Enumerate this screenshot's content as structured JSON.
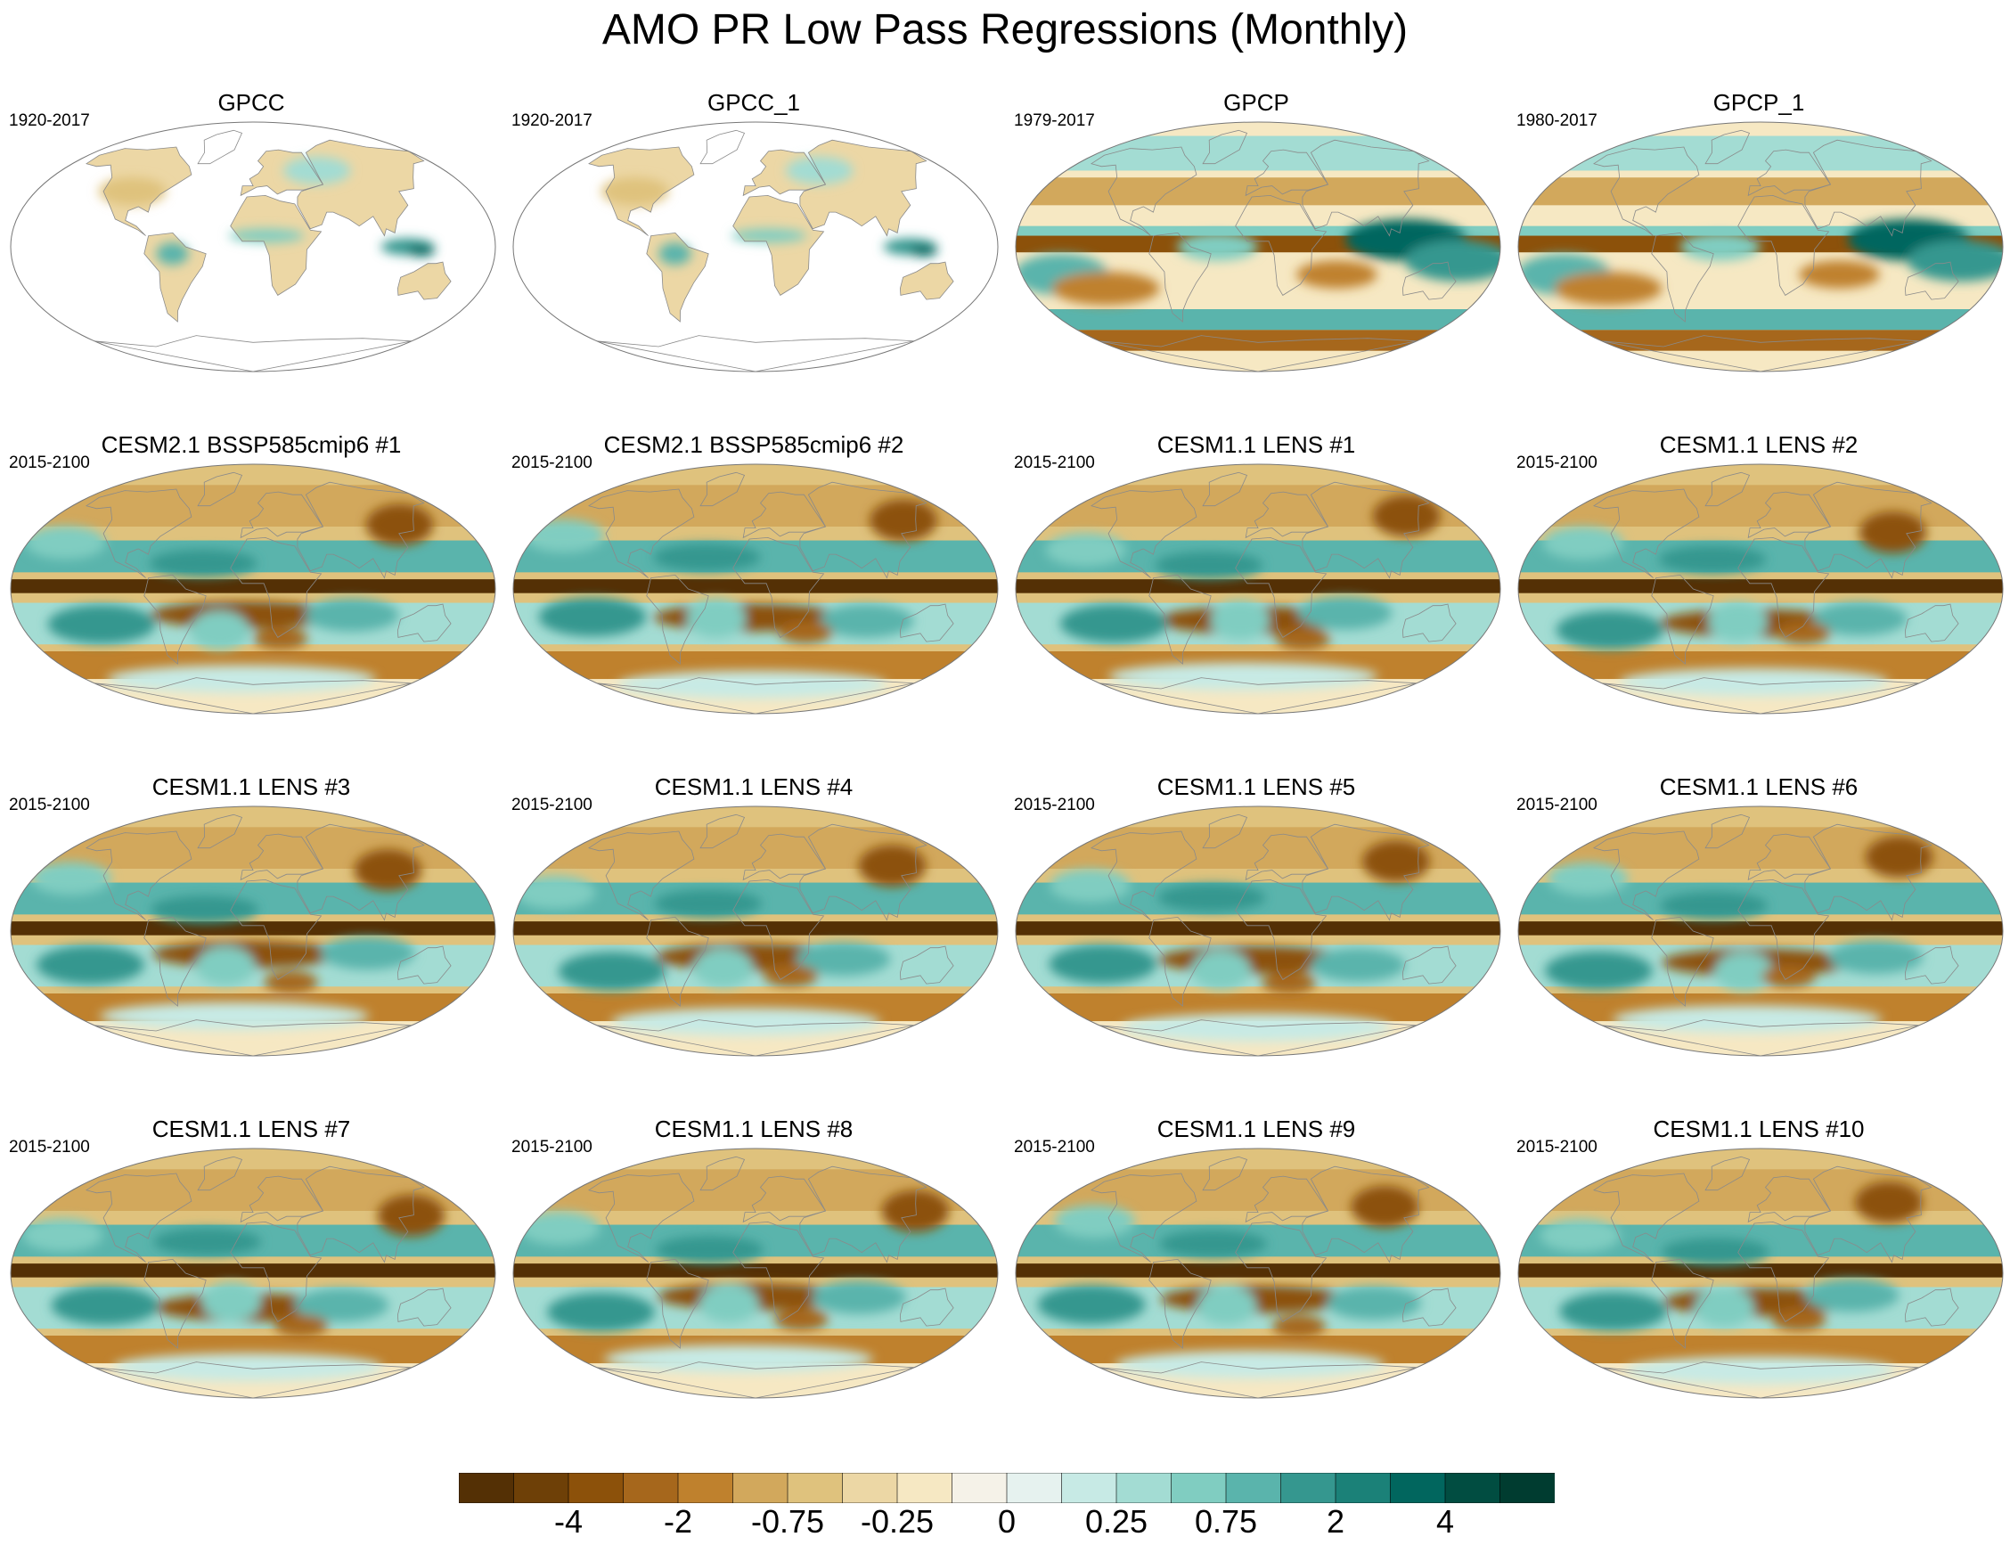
{
  "title": "AMO PR Low Pass Regressions (Monthly)",
  "panels": [
    {
      "title": "GPCC",
      "period": "1920-2017",
      "style": "land"
    },
    {
      "title": "GPCC_1",
      "period": "1920-2017",
      "style": "land"
    },
    {
      "title": "GPCP",
      "period": "1979-2017",
      "style": "obs"
    },
    {
      "title": "GPCP_1",
      "period": "1980-2017",
      "style": "obs"
    },
    {
      "title": "CESM2.1 BSSP585cmip6 #1",
      "period": "2015-2100",
      "style": "model"
    },
    {
      "title": "CESM2.1 BSSP585cmip6 #2",
      "period": "2015-2100",
      "style": "model"
    },
    {
      "title": "CESM1.1 LENS #1",
      "period": "2015-2100",
      "style": "model"
    },
    {
      "title": "CESM1.1 LENS #2",
      "period": "2015-2100",
      "style": "model"
    },
    {
      "title": "CESM1.1 LENS #3",
      "period": "2015-2100",
      "style": "model"
    },
    {
      "title": "CESM1.1 LENS #4",
      "period": "2015-2100",
      "style": "model"
    },
    {
      "title": "CESM1.1 LENS #5",
      "period": "2015-2100",
      "style": "model"
    },
    {
      "title": "CESM1.1 LENS #6",
      "period": "2015-2100",
      "style": "model"
    },
    {
      "title": "CESM1.1 LENS #7",
      "period": "2015-2100",
      "style": "model"
    },
    {
      "title": "CESM1.1 LENS #8",
      "period": "2015-2100",
      "style": "model"
    },
    {
      "title": "CESM1.1 LENS #9",
      "period": "2015-2100",
      "style": "model"
    },
    {
      "title": "CESM1.1 LENS #10",
      "period": "2015-2100",
      "style": "model"
    }
  ],
  "colorbar": {
    "colors": [
      "#543005",
      "#6e4007",
      "#8c510a",
      "#a6671c",
      "#bf812d",
      "#d2a85c",
      "#dfc27d",
      "#ecd7a5",
      "#f6e8c3",
      "#f5f2e8",
      "#e6f2ef",
      "#c7eae5",
      "#a3dcd3",
      "#80cdc1",
      "#5ab4ac",
      "#35978f",
      "#1b8178",
      "#01665e",
      "#014d41",
      "#003c30"
    ],
    "labels": [
      "-4",
      "-2",
      "-0.75",
      "-0.25",
      "0",
      "0.25",
      "0.75",
      "2",
      "4"
    ]
  }
}
